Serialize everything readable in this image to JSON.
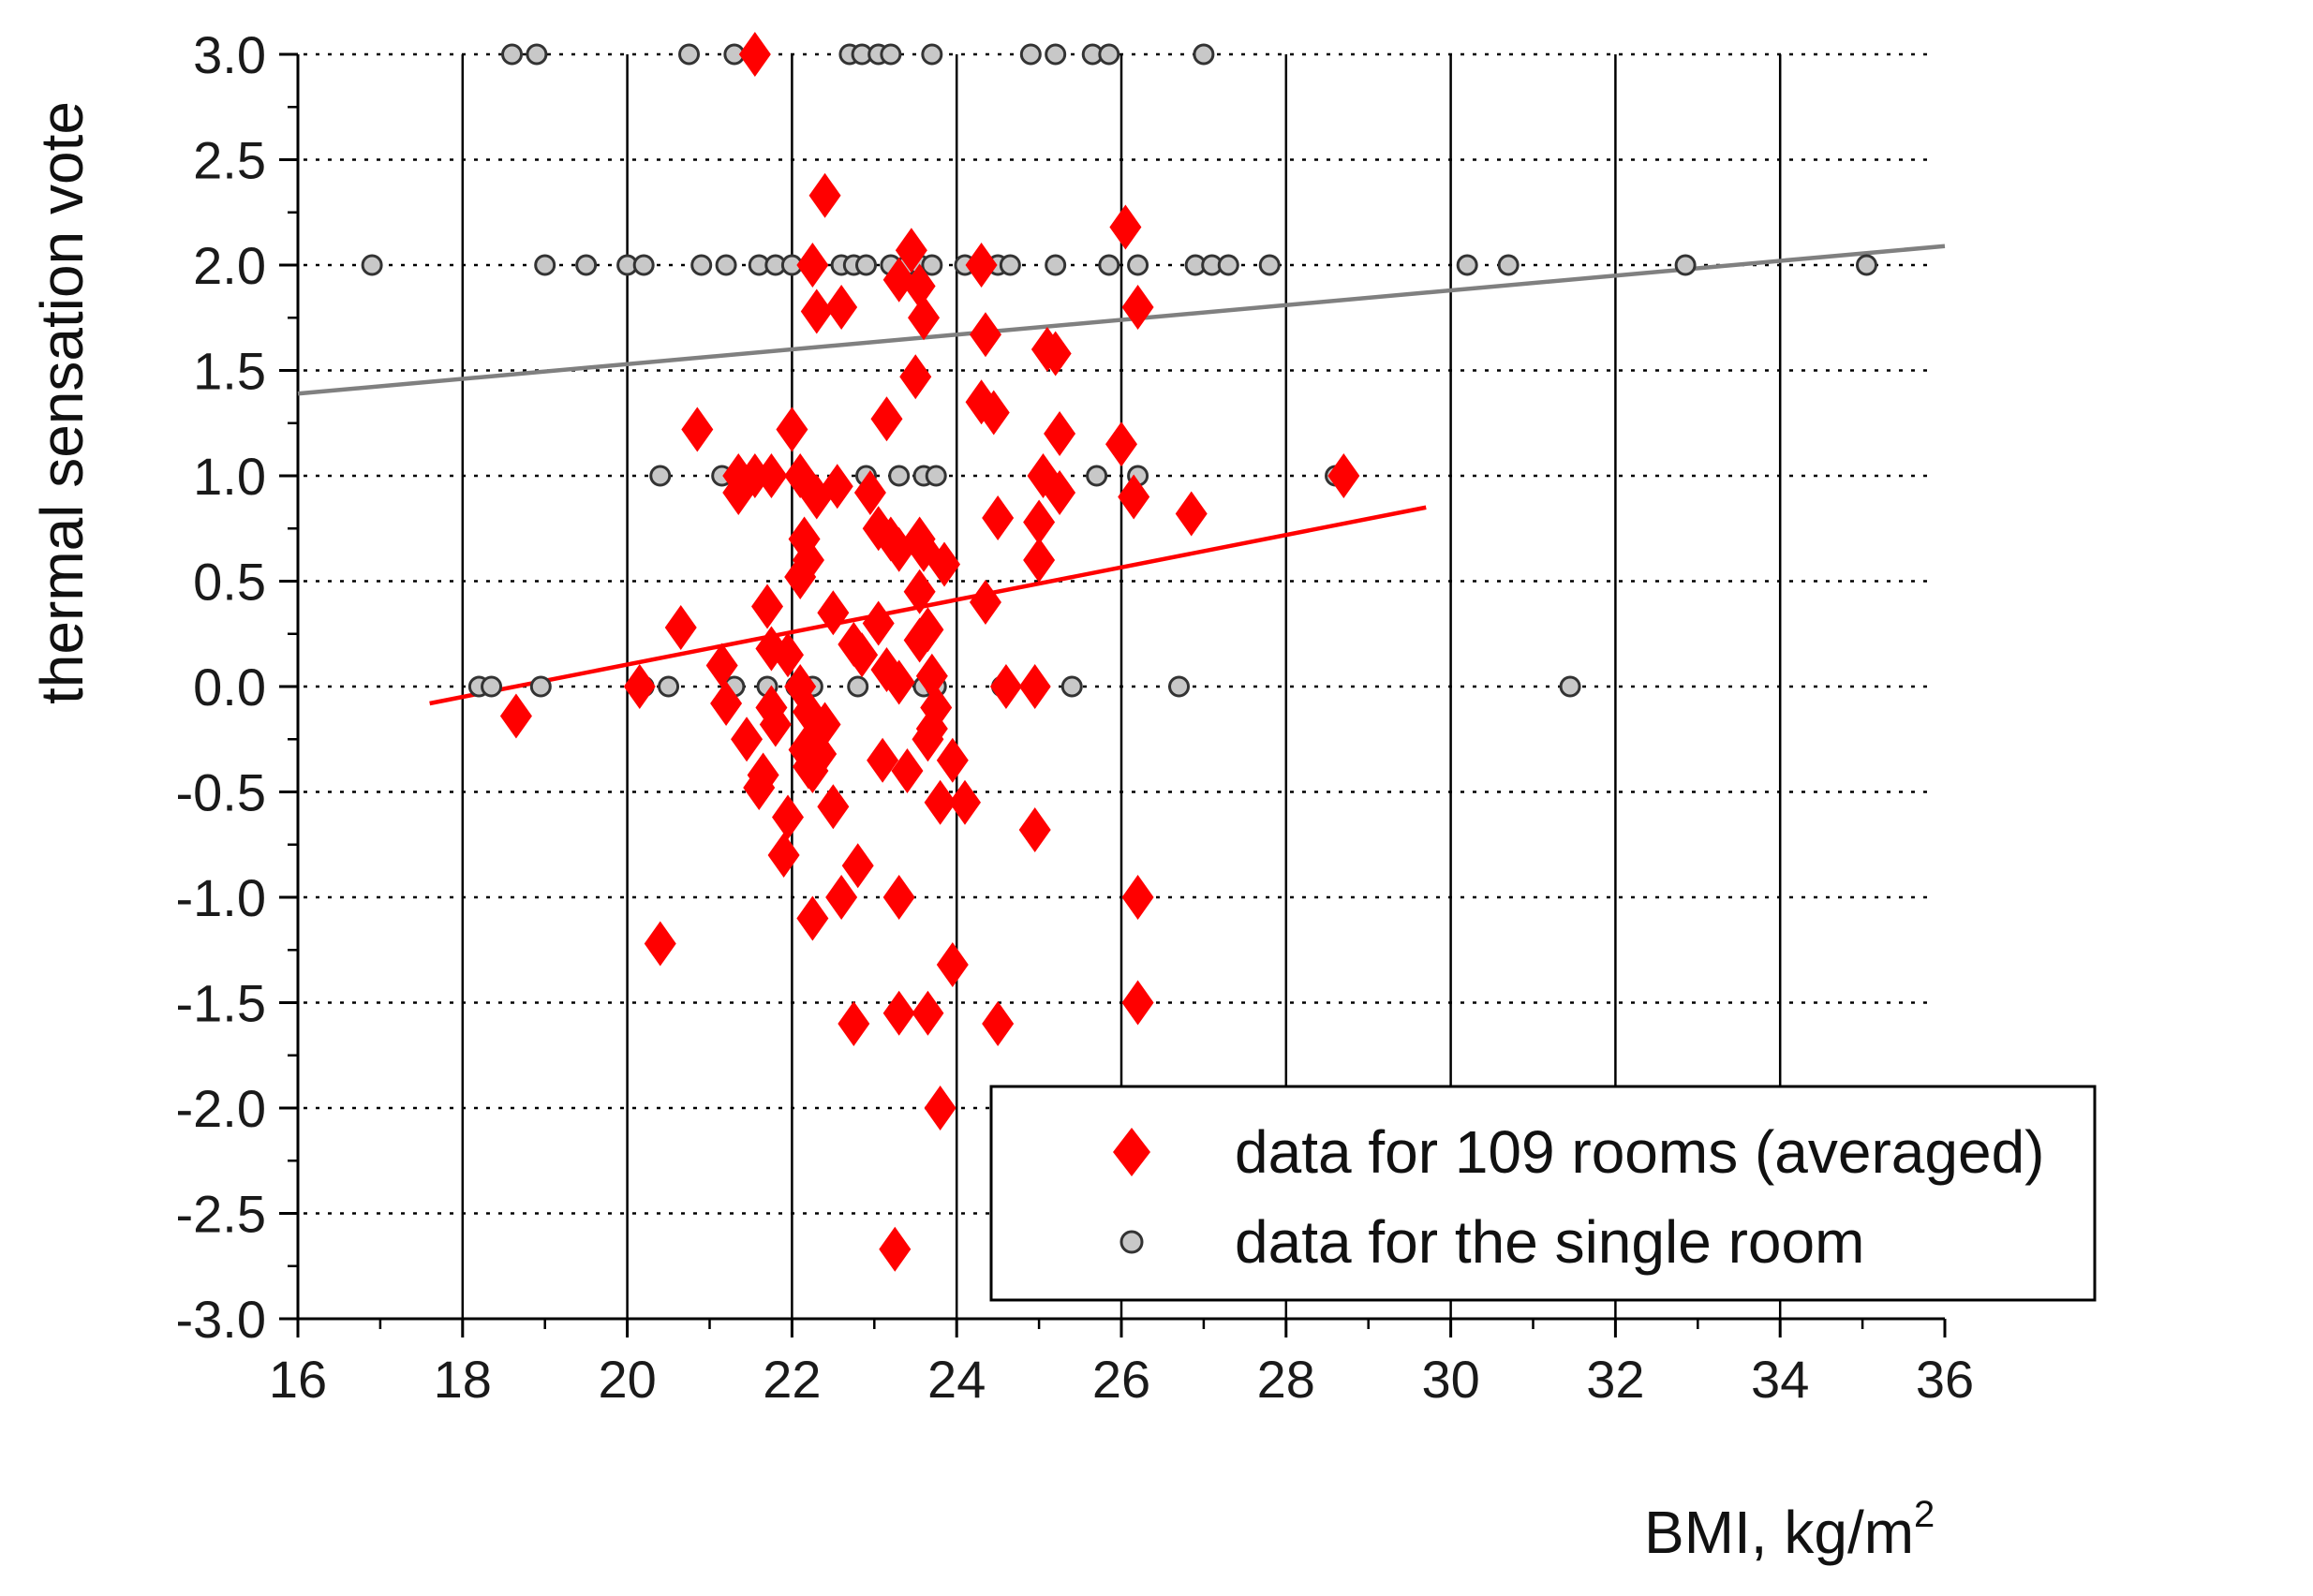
{
  "chart_data": {
    "type": "scatter",
    "title": "",
    "xlabel": "BMI, kg/m",
    "xlabel_superscript": "2",
    "ylabel": "thermal sensation vote",
    "xlim": [
      16,
      36
    ],
    "ylim": [
      -3.0,
      3.0
    ],
    "x_ticks": [
      16,
      18,
      20,
      22,
      24,
      26,
      28,
      30,
      32,
      34,
      36
    ],
    "x_tick_labels": [
      "16",
      "18",
      "20",
      "22",
      "24",
      "26",
      "28",
      "30",
      "32",
      "34",
      "36"
    ],
    "y_ticks": [
      3.0,
      2.5,
      2.0,
      1.5,
      1.0,
      0.5,
      0.0,
      -0.5,
      -1.0,
      -1.5,
      -2.0,
      -2.5,
      -3.0
    ],
    "y_tick_labels": [
      "3.0",
      "2.5",
      "2.0",
      "1.5",
      "1.0",
      "0.5",
      "0.0",
      "-0.5",
      "-1.0",
      "-1.5",
      "-2.0",
      "-2.5",
      "-3.0"
    ],
    "grid": "vertical solid lines at major x ticks, dotted horizontal lines at y ticks",
    "legend_position": "bottom-right",
    "series": [
      {
        "name": "data for 109 rooms (averaged)",
        "marker": "diamond",
        "color": "#ff0000",
        "points": [
          [
            21.55,
            3.0
          ],
          [
            22.4,
            2.33
          ],
          [
            26.05,
            2.18
          ],
          [
            23.45,
            2.07
          ],
          [
            22.25,
            2.0
          ],
          [
            23.3,
            1.93
          ],
          [
            23.55,
            1.9
          ],
          [
            24.3,
            2.0
          ],
          [
            22.3,
            1.78
          ],
          [
            22.6,
            1.8
          ],
          [
            23.6,
            1.75
          ],
          [
            26.2,
            1.8
          ],
          [
            24.35,
            1.67
          ],
          [
            25.1,
            1.6
          ],
          [
            25.2,
            1.58
          ],
          [
            23.5,
            1.47
          ],
          [
            24.3,
            1.35
          ],
          [
            24.45,
            1.3
          ],
          [
            23.15,
            1.27
          ],
          [
            22.0,
            1.22
          ],
          [
            20.85,
            1.22
          ],
          [
            25.25,
            1.2
          ],
          [
            26.0,
            1.15
          ],
          [
            21.35,
            1.0
          ],
          [
            21.55,
            1.0
          ],
          [
            21.75,
            1.0
          ],
          [
            22.1,
            1.0
          ],
          [
            22.55,
            0.95
          ],
          [
            21.35,
            0.92
          ],
          [
            22.3,
            0.9
          ],
          [
            25.05,
            1.0
          ],
          [
            25.25,
            0.92
          ],
          [
            26.15,
            0.9
          ],
          [
            26.85,
            0.82
          ],
          [
            28.7,
            1.0
          ],
          [
            25.0,
            0.78
          ],
          [
            24.5,
            0.8
          ],
          [
            22.95,
            0.92
          ],
          [
            23.05,
            0.75
          ],
          [
            23.2,
            0.7
          ],
          [
            23.55,
            0.7
          ],
          [
            23.6,
            0.65
          ],
          [
            23.3,
            0.65
          ],
          [
            22.15,
            0.7
          ],
          [
            22.2,
            0.6
          ],
          [
            23.85,
            0.58
          ],
          [
            25.0,
            0.6
          ],
          [
            22.1,
            0.52
          ],
          [
            23.55,
            0.45
          ],
          [
            24.35,
            0.4
          ],
          [
            21.7,
            0.38
          ],
          [
            22.5,
            0.35
          ],
          [
            23.05,
            0.3
          ],
          [
            20.65,
            0.28
          ],
          [
            23.65,
            0.27
          ],
          [
            23.55,
            0.22
          ],
          [
            22.75,
            0.2
          ],
          [
            21.75,
            0.18
          ],
          [
            22.85,
            0.15
          ],
          [
            21.95,
            0.15
          ],
          [
            21.15,
            0.1
          ],
          [
            23.15,
            0.08
          ],
          [
            23.7,
            0.05
          ],
          [
            23.3,
            0.02
          ],
          [
            20.15,
            0.0
          ],
          [
            22.1,
            0.0
          ],
          [
            24.6,
            0.0
          ],
          [
            24.95,
            0.0
          ],
          [
            21.2,
            -0.08
          ],
          [
            21.75,
            -0.1
          ],
          [
            22.2,
            -0.12
          ],
          [
            23.75,
            -0.1
          ],
          [
            18.65,
            -0.14
          ],
          [
            21.8,
            -0.18
          ],
          [
            22.4,
            -0.18
          ],
          [
            23.7,
            -0.2
          ],
          [
            21.45,
            -0.25
          ],
          [
            22.25,
            -0.25
          ],
          [
            23.65,
            -0.25
          ],
          [
            22.15,
            -0.3
          ],
          [
            22.35,
            -0.32
          ],
          [
            23.1,
            -0.35
          ],
          [
            23.95,
            -0.35
          ],
          [
            22.2,
            -0.38
          ],
          [
            23.4,
            -0.4
          ],
          [
            21.65,
            -0.42
          ],
          [
            22.25,
            -0.4
          ],
          [
            21.6,
            -0.48
          ],
          [
            23.8,
            -0.55
          ],
          [
            24.1,
            -0.55
          ],
          [
            22.5,
            -0.57
          ],
          [
            21.95,
            -0.62
          ],
          [
            24.95,
            -0.68
          ],
          [
            21.9,
            -0.8
          ],
          [
            22.8,
            -0.85
          ],
          [
            23.3,
            -1.0
          ],
          [
            22.6,
            -1.0
          ],
          [
            26.2,
            -1.0
          ],
          [
            22.25,
            -1.1
          ],
          [
            20.4,
            -1.22
          ],
          [
            23.95,
            -1.32
          ],
          [
            26.2,
            -1.5
          ],
          [
            23.3,
            -1.55
          ],
          [
            23.65,
            -1.55
          ],
          [
            24.5,
            -1.6
          ],
          [
            22.75,
            -1.6
          ],
          [
            23.8,
            -2.0
          ],
          [
            23.25,
            -2.67
          ]
        ],
        "trend_line": {
          "x": [
            17.6,
            29.7
          ],
          "y": [
            -0.08,
            0.85
          ],
          "color": "#ff0000"
        }
      },
      {
        "name": "data for the single room",
        "marker": "circle",
        "color": "#c8c8c8",
        "edge_color": "#333333",
        "points": [
          [
            18.6,
            3.0
          ],
          [
            18.9,
            3.0
          ],
          [
            20.75,
            3.0
          ],
          [
            21.3,
            3.0
          ],
          [
            22.7,
            3.0
          ],
          [
            22.85,
            3.0
          ],
          [
            23.05,
            3.0
          ],
          [
            23.2,
            3.0
          ],
          [
            23.7,
            3.0
          ],
          [
            24.9,
            3.0
          ],
          [
            25.2,
            3.0
          ],
          [
            25.65,
            3.0
          ],
          [
            25.85,
            3.0
          ],
          [
            27.0,
            3.0
          ],
          [
            16.9,
            2.0
          ],
          [
            19.0,
            2.0
          ],
          [
            19.5,
            2.0
          ],
          [
            20.0,
            2.0
          ],
          [
            20.2,
            2.0
          ],
          [
            20.9,
            2.0
          ],
          [
            21.2,
            2.0
          ],
          [
            21.6,
            2.0
          ],
          [
            21.8,
            2.0
          ],
          [
            22.0,
            2.0
          ],
          [
            22.6,
            2.0
          ],
          [
            22.75,
            2.0
          ],
          [
            22.9,
            2.0
          ],
          [
            23.2,
            2.0
          ],
          [
            23.4,
            2.0
          ],
          [
            23.55,
            2.0
          ],
          [
            23.7,
            2.0
          ],
          [
            24.1,
            2.0
          ],
          [
            24.5,
            2.0
          ],
          [
            24.65,
            2.0
          ],
          [
            25.2,
            2.0
          ],
          [
            25.85,
            2.0
          ],
          [
            26.2,
            2.0
          ],
          [
            26.9,
            2.0
          ],
          [
            27.1,
            2.0
          ],
          [
            27.3,
            2.0
          ],
          [
            27.8,
            2.0
          ],
          [
            30.2,
            2.0
          ],
          [
            30.7,
            2.0
          ],
          [
            32.85,
            2.0
          ],
          [
            35.05,
            2.0
          ],
          [
            20.4,
            1.0
          ],
          [
            21.15,
            1.0
          ],
          [
            22.1,
            1.0
          ],
          [
            22.9,
            1.0
          ],
          [
            23.3,
            1.0
          ],
          [
            23.6,
            1.0
          ],
          [
            23.75,
            1.0
          ],
          [
            25.7,
            1.0
          ],
          [
            26.2,
            1.0
          ],
          [
            28.6,
            1.0
          ],
          [
            18.2,
            0.0
          ],
          [
            18.35,
            0.0
          ],
          [
            18.95,
            0.0
          ],
          [
            20.2,
            0.0
          ],
          [
            20.5,
            0.0
          ],
          [
            21.3,
            0.0
          ],
          [
            21.7,
            0.0
          ],
          [
            22.05,
            0.0
          ],
          [
            22.15,
            0.0
          ],
          [
            22.25,
            0.0
          ],
          [
            22.8,
            0.0
          ],
          [
            23.6,
            0.0
          ],
          [
            23.75,
            0.0
          ],
          [
            24.55,
            0.0
          ],
          [
            25.4,
            0.0
          ],
          [
            26.7,
            0.0
          ],
          [
            31.45,
            0.0
          ]
        ],
        "trend_line": {
          "x": [
            16.0,
            36.0
          ],
          "y": [
            1.39,
            2.09
          ],
          "color": "#808080"
        }
      }
    ]
  }
}
